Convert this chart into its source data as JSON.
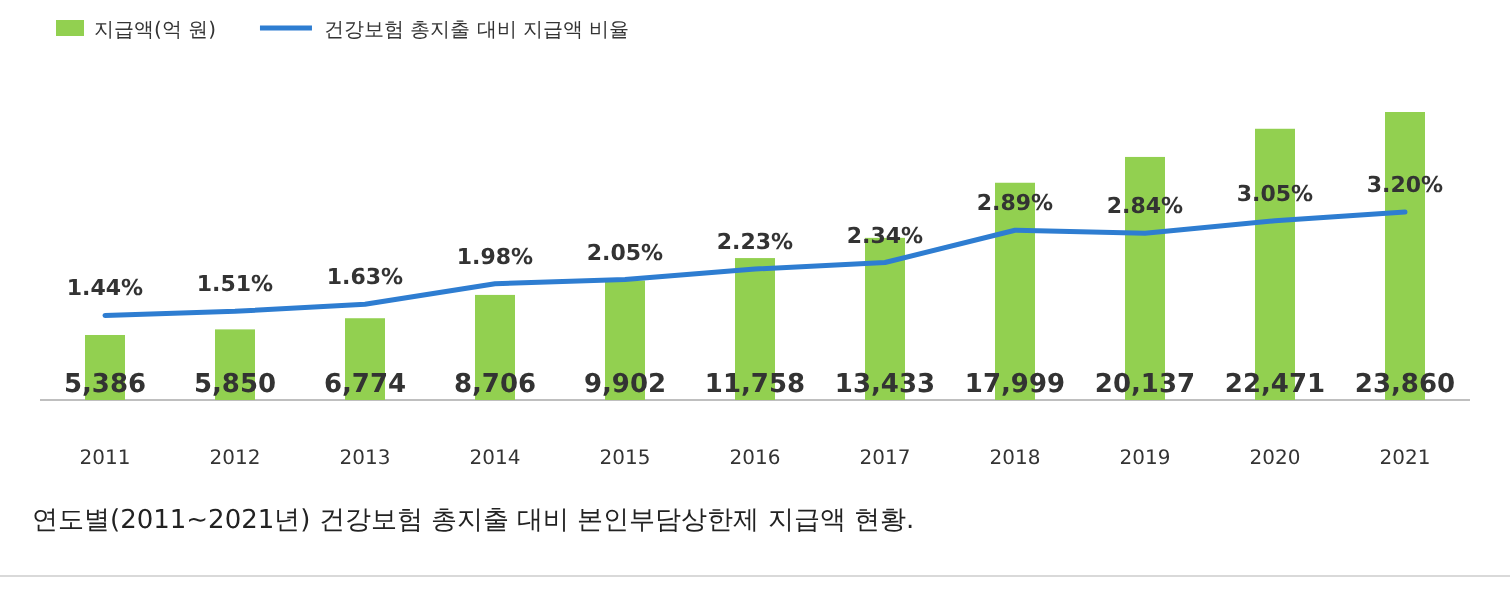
{
  "chart_data": {
    "type": "bar",
    "categories": [
      "2011",
      "2012",
      "2013",
      "2014",
      "2015",
      "2016",
      "2017",
      "2018",
      "2019",
      "2020",
      "2021"
    ],
    "series": [
      {
        "name": "지급액(억 원)",
        "color": "#92d050",
        "values": [
          5386,
          5850,
          6774,
          8706,
          9902,
          11758,
          13433,
          17999,
          20137,
          22471,
          23860
        ],
        "value_labels": [
          "5,386",
          "5,850",
          "6,774",
          "8,706",
          "9,902",
          "11,758",
          "13,433",
          "17,999",
          "20,137",
          "22,471",
          "23,860"
        ]
      },
      {
        "name": "건강보험 총지출 대비 지급액 비율",
        "type": "line",
        "axis": "y2",
        "color": "#2e7dd1",
        "values": [
          1.44,
          1.51,
          1.63,
          1.98,
          2.05,
          2.23,
          2.34,
          2.89,
          2.84,
          3.05,
          3.2
        ],
        "value_labels": [
          "1.44%",
          "1.51%",
          "1.63%",
          "1.98%",
          "2.05%",
          "2.23%",
          "2.34%",
          "2.89%",
          "2.84%",
          "3.05%",
          "3.20%"
        ]
      }
    ],
    "legend": "top left",
    "annotations": [
      "연도별(2011~2021년) 건강보험 총지출 대비 본인부담상한제 지급액 현황."
    ]
  }
}
